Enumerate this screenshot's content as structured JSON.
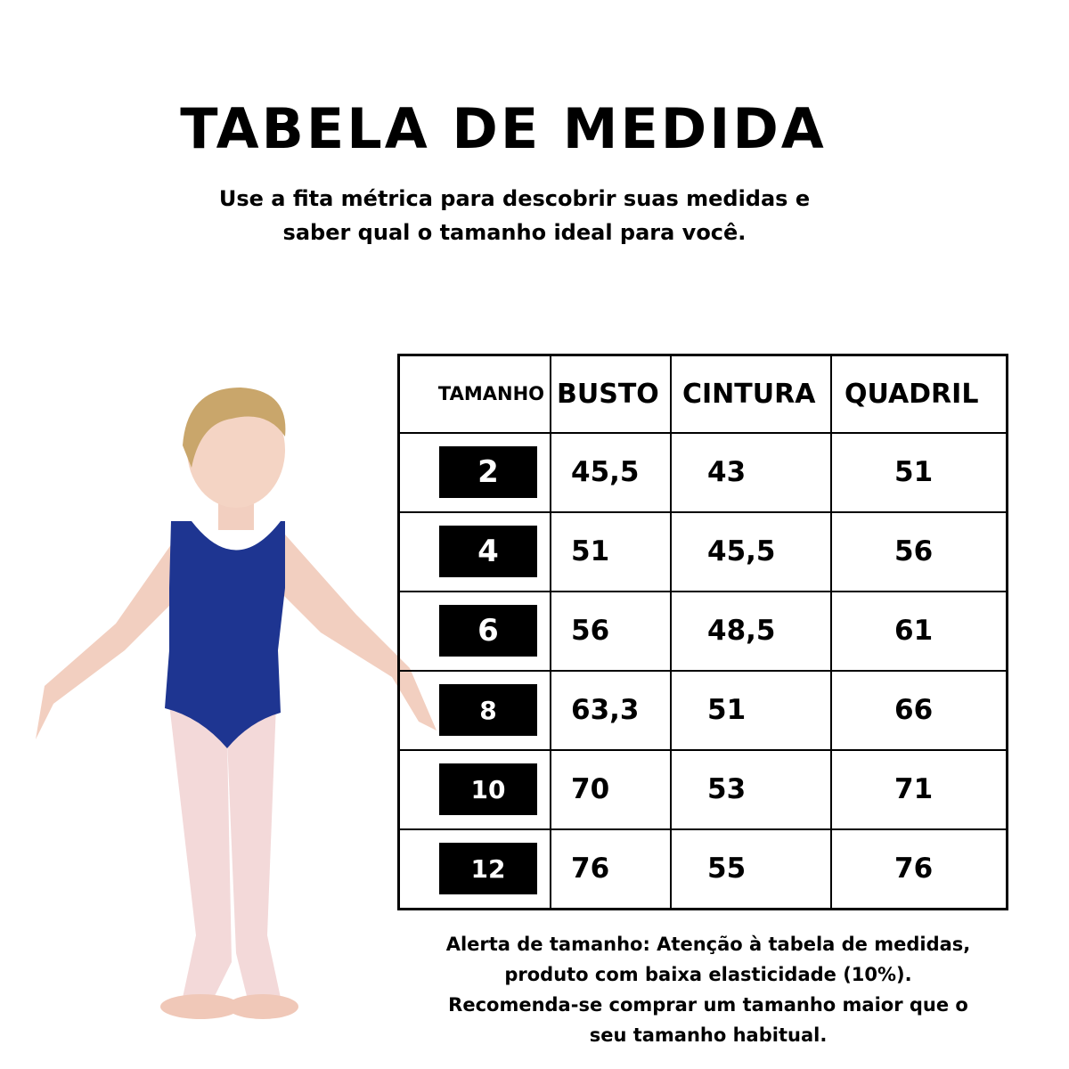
{
  "title": "TABELA DE MEDIDA",
  "subtitle": [
    "Use a fita métrica para descobrir suas medidas e",
    "saber qual o tamanho ideal para você."
  ],
  "table": {
    "headers": [
      "TAMANHO",
      "BUSTO",
      "CINTURA",
      "QUADRIL"
    ],
    "rows": [
      {
        "size": "2",
        "busto": "45,5",
        "cintura": "43",
        "quadril": "51"
      },
      {
        "size": "4",
        "busto": "51",
        "cintura": "45,5",
        "quadril": "56"
      },
      {
        "size": "6",
        "busto": "56",
        "cintura": "48,5",
        "quadril": "61"
      },
      {
        "size": "8",
        "busto": "63,3",
        "cintura": "51",
        "quadril": "66"
      },
      {
        "size": "10",
        "busto": "70",
        "cintura": "53",
        "quadril": "71"
      },
      {
        "size": "12",
        "busto": "76",
        "cintura": "55",
        "quadril": "76"
      }
    ]
  },
  "alert": [
    "Alerta de tamanho: Atenção à tabela de medidas,",
    "produto com baixa elasticidade (10%).",
    "Recomenda-se comprar um tamanho maior que o",
    "seu tamanho habitual."
  ],
  "colors": {
    "leotard": "#1e3591",
    "tights": "#f3d9d9",
    "badge": "#000000"
  }
}
